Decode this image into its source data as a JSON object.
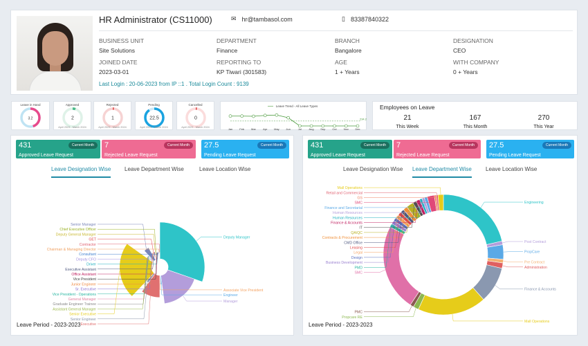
{
  "profile": {
    "name": "HR Administrator (CS11000)",
    "email": "hr@tambasol.com",
    "phone": "83387840322",
    "fields": [
      {
        "label": "Business Unit",
        "value": "Site Solutions"
      },
      {
        "label": "Department",
        "value": "Finance"
      },
      {
        "label": "Branch",
        "value": "Bangalore"
      },
      {
        "label": "Designation",
        "value": "CEO"
      },
      {
        "label": "Joined Date",
        "value": "2023-03-01"
      },
      {
        "label": "Reporting To",
        "value": "KP Tiwari (301583)"
      },
      {
        "label": "Age",
        "value": "1 + Years"
      },
      {
        "label": "With Company",
        "value": "0 + Years"
      }
    ],
    "last_login": "Last Login : 20-06-2023 from IP ::1 . Total Login Count : 9139"
  },
  "mini_cards": [
    {
      "title": "Leave in Hand",
      "value": "3.2",
      "fraction": 0.45,
      "color": "#e84a8c",
      "track": "#bfe3f3",
      "footer": ""
    },
    {
      "title": "Approved",
      "value": "2",
      "fraction": 0.05,
      "color": "#4cba8a",
      "track": "#dff2e8",
      "footer": "April 2023 - March 2024"
    },
    {
      "title": "Rejected",
      "value": "1",
      "fraction": 0.01,
      "color": "#e04848",
      "track": "#f6d3d3",
      "footer": "April 2023 - March 2024"
    },
    {
      "title": "Pending",
      "value": "22.5",
      "fraction": 0.9,
      "color": "#1aa3e0",
      "track": "#cfe9f7",
      "footer": "April 2023 - March 2024"
    },
    {
      "title": "Cancelled",
      "value": "0",
      "fraction": 0,
      "color": "#e04848",
      "track": "#fbdcdc",
      "footer": "April 2023 - March 2024"
    }
  ],
  "chart_data": [
    {
      "type": "line",
      "title": "Leave Trend - All Leave Types",
      "categories": [
        "Jan",
        "Feb",
        "Mar",
        "Apr",
        "May",
        "Jun",
        "Jul",
        "Aug",
        "Sep",
        "Oct",
        "Nov",
        "Dec"
      ],
      "series": [
        {
          "name": "Leave Trend - All Leave Types",
          "values": [
            470,
            470,
            460,
            500,
            520,
            390,
            0,
            0,
            0,
            0,
            0,
            0
          ]
        }
      ],
      "average_line": 234.2,
      "average_label": "234.2",
      "color": "#4a9a3c"
    },
    {
      "type": "pie",
      "variant": "rose",
      "title": "",
      "labels": [
        "Deputy Manager",
        "Manager",
        "Engineer",
        "Associate Vice President",
        "Executive",
        "Senior Engineer",
        "Senior Executive",
        "Assistant General Manager",
        "Graduate Engineer Trainee",
        "General Manager",
        "Vice President - Operations",
        "Senior Manager",
        "Sr. Executive",
        "Junior Engineer",
        "GET",
        "Executive Assistant",
        "Deputy General Manager",
        "Chief Executive Officer",
        "Vice President",
        "Office Assistant",
        "Driver",
        "Deputy CFO",
        "Consultant",
        "Chairman & Managing Director",
        "Contractor"
      ],
      "values": [
        120,
        70,
        5,
        3,
        40,
        8,
        90,
        3,
        3,
        3,
        3,
        15,
        3,
        3,
        4,
        3,
        3,
        3,
        2,
        2,
        2,
        2,
        2,
        2,
        2
      ],
      "colors": [
        "#2ec4c8",
        "#b39ddb",
        "#5aa9e6",
        "#f4a261",
        "#e07070",
        "#8a94a8",
        "#e6cc1a",
        "#9cb84a",
        "#8a8a8a",
        "#e080a0",
        "#27b5a0",
        "#7a86b8",
        "#8a70d0",
        "#f08a40",
        "#e04848",
        "#505a80",
        "#c8b830",
        "#98b020",
        "#404040",
        "#c02060",
        "#20b0c0",
        "#a090e0",
        "#4080d0",
        "#f0a060",
        "#e06070"
      ]
    },
    {
      "type": "pie",
      "variant": "donut",
      "title": "",
      "labels": [
        "Engineering",
        "Post Contract",
        "PropCare",
        "Pre Contract",
        "Administration",
        "Finance & Accounts",
        "Mall Operations",
        "Propcare RE",
        "PMC",
        "SMC",
        "PMD",
        "Business Development",
        "Design",
        "Legal",
        "Leasing",
        "CMD Office",
        "Contracts & Procurement",
        "QA/QC",
        "IT",
        "Finance & Accounts",
        "Human Resources",
        "Human Resources",
        "Finance and Secretarial",
        "SMC",
        "GS",
        "Retail and Commercial",
        "Mall Operations"
      ],
      "values": [
        22,
        1,
        4,
        1,
        1.5,
        10,
        19,
        1.5,
        1,
        24,
        1,
        1,
        1,
        1,
        1,
        1,
        1.2,
        2,
        1,
        1,
        0.7,
        0.7,
        0.8,
        2,
        0.5,
        0.5,
        1.5
      ],
      "colors": [
        "#2ec4c8",
        "#b39ddb",
        "#5aa9e6",
        "#f4b070",
        "#e06060",
        "#8a98b0",
        "#e6cc1a",
        "#8cb850",
        "#8a5a50",
        "#e070a8",
        "#27b5a0",
        "#9a80d0",
        "#5a70c0",
        "#f4a261",
        "#e04848",
        "#505a80",
        "#f0903a",
        "#b8b020",
        "#505050",
        "#c02060",
        "#20b0c0",
        "#b39ddb",
        "#5aa9e6",
        "#e04878",
        "#f08060",
        "#e06070",
        "#e6cc1a"
      ]
    }
  ],
  "employees_on_leave": {
    "title": "Employees on Leave",
    "items": [
      {
        "value": "21",
        "label": "This Week"
      },
      {
        "value": "167",
        "label": "This Month"
      },
      {
        "value": "270",
        "label": "This Year"
      }
    ]
  },
  "panels": [
    {
      "tiles": [
        {
          "value": "431",
          "label": "Approved Leave Request",
          "badge": "Current Month",
          "color": "#26a38a",
          "badge_color": "#1a6e5d"
        },
        {
          "value": "7",
          "label": "Rejected Leave Request",
          "badge": "Current Month",
          "color": "#ef6b93",
          "badge_color": "#b8355e"
        },
        {
          "value": "27.5",
          "label": "Pending Leave Request",
          "badge": "Current Month",
          "color": "#2ab1f0",
          "badge_color": "#1a78b8"
        }
      ],
      "tabs": [
        "Leave Designation Wise",
        "Leave Department Wise",
        "Leave Location Wise"
      ],
      "active_tab": 0,
      "period": "Leave Period - 2023-2023"
    },
    {
      "tiles": [
        {
          "value": "431",
          "label": "Approved Leave Request",
          "badge": "Current Month",
          "color": "#26a38a",
          "badge_color": "#1a6e5d"
        },
        {
          "value": "7",
          "label": "Rejected Leave Request",
          "badge": "Current Month",
          "color": "#ef6b93",
          "badge_color": "#b8355e"
        },
        {
          "value": "27.5",
          "label": "Pending Leave Request",
          "badge": "Current Month",
          "color": "#2ab1f0",
          "badge_color": "#1a78b8"
        }
      ],
      "tabs": [
        "Leave Designation Wise",
        "Leave Department Wise",
        "Leave Location Wise"
      ],
      "active_tab": 1,
      "period": "Leave Period - 2023-2023"
    }
  ]
}
